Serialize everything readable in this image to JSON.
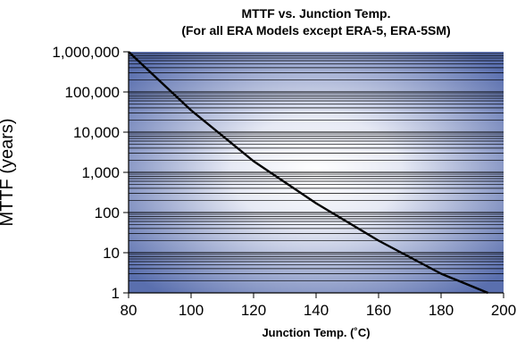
{
  "chart_data": {
    "type": "line",
    "title": "MTTF vs. Junction Temp.",
    "subtitle": "(For all ERA Models except ERA-5, ERA-5SM)",
    "xlabel": "Junction Temp. (˚C)",
    "ylabel": "MTTF (years)",
    "xlim": [
      80,
      200
    ],
    "ylim": [
      1,
      1000000
    ],
    "y_scale": "log",
    "grid": true,
    "x_ticks": [
      80,
      100,
      120,
      140,
      160,
      180,
      200
    ],
    "x_tick_labels": [
      "80",
      "100",
      "120",
      "140",
      "160",
      "180",
      "200"
    ],
    "y_ticks": [
      1,
      10,
      100,
      1000,
      10000,
      100000,
      1000000
    ],
    "y_tick_labels": [
      "1",
      "10",
      "100",
      "1,000",
      "10,000",
      "100,000",
      "1,000,000"
    ],
    "series": [
      {
        "x": [
          80,
          100,
          120,
          140,
          160,
          180,
          195
        ],
        "y": [
          1000000,
          35000,
          1900,
          170,
          20,
          3,
          1
        ],
        "color": "#000000"
      }
    ],
    "colors": {
      "plot_center": "#ffffff",
      "plot_edge": "#5a6fae",
      "gridline": "#000000",
      "line": "#000000"
    }
  }
}
